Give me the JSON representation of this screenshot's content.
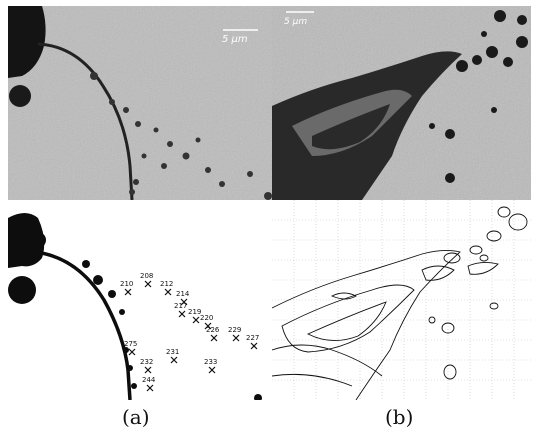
{
  "captions": {
    "a": "(a)",
    "b": "(b)"
  },
  "scale_bars": {
    "a": "5 μm",
    "b": "5 μm"
  },
  "markers": [
    {
      "label": "208"
    },
    {
      "label": "210"
    },
    {
      "label": "212"
    },
    {
      "label": "214"
    },
    {
      "label": "217"
    },
    {
      "label": "219"
    },
    {
      "label": "220"
    },
    {
      "label": "226"
    },
    {
      "label": "229"
    },
    {
      "label": "227"
    },
    {
      "label": "275"
    },
    {
      "label": "231"
    },
    {
      "label": "232"
    },
    {
      "label": "233"
    },
    {
      "label": "244"
    }
  ],
  "colors": {
    "micrograph_bg": "#b9b9b9",
    "dark": "#111111",
    "grid": "#bfbfbf"
  }
}
